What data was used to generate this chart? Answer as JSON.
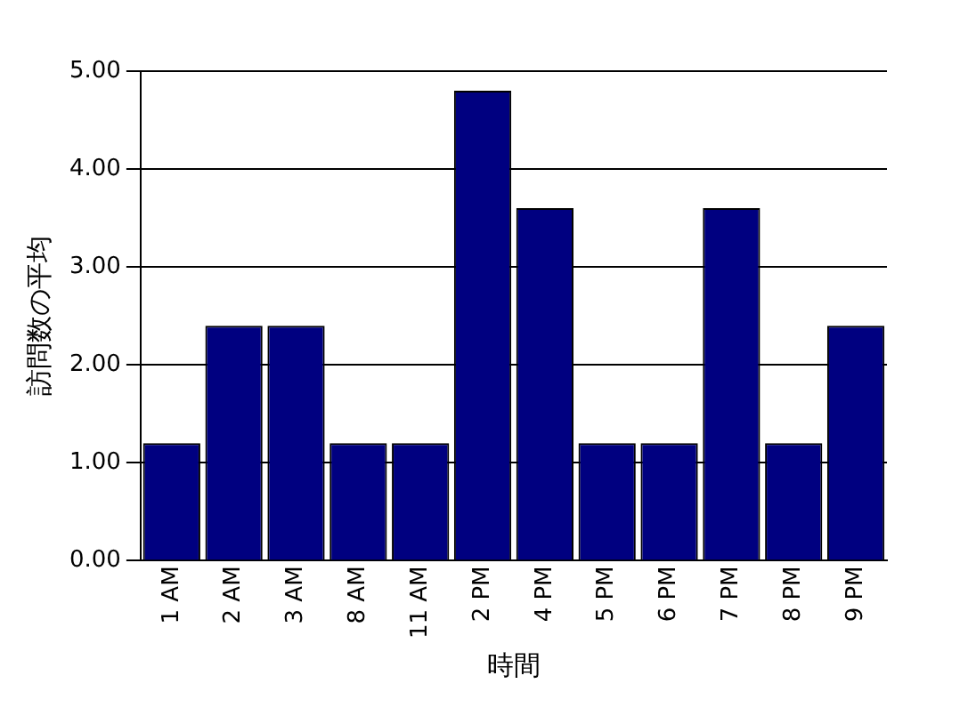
{
  "chart_data": {
    "type": "bar",
    "xlabel": "時間",
    "ylabel": "訪問数の平均",
    "categories": [
      "1 AM",
      "2 AM",
      "3 AM",
      "8 AM",
      "11 AM",
      "2 PM",
      "4 PM",
      "5 PM",
      "6 PM",
      "7 PM",
      "8 PM",
      "9 PM"
    ],
    "values": [
      1.2,
      2.4,
      2.4,
      1.2,
      1.2,
      4.8,
      3.6,
      1.2,
      1.2,
      3.6,
      1.2,
      2.4
    ],
    "color": "#000080",
    "ylim": [
      0,
      5
    ],
    "yticks": [
      {
        "value": 0,
        "label": "0.00"
      },
      {
        "value": 1,
        "label": "1.00"
      },
      {
        "value": 2,
        "label": "2.00"
      },
      {
        "value": 3,
        "label": "3.00"
      },
      {
        "value": 4,
        "label": "4.00"
      },
      {
        "value": 5,
        "label": "5.00"
      }
    ],
    "grid": "y",
    "legend": false
  }
}
